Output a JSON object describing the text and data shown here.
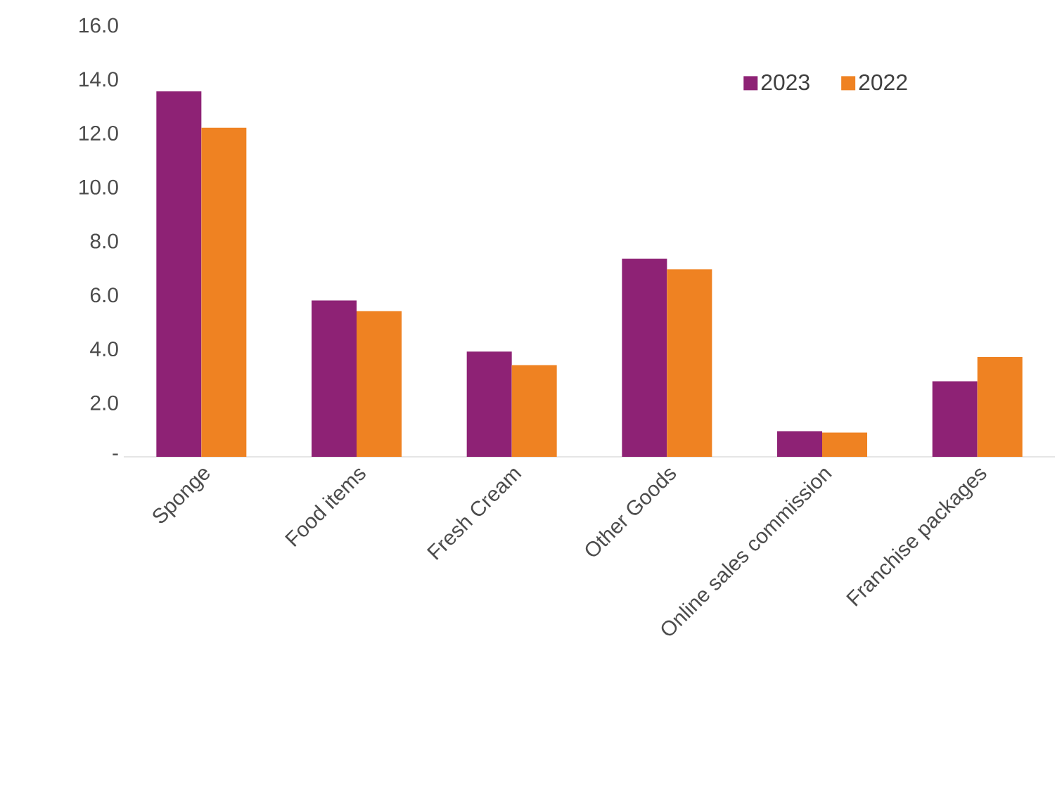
{
  "chart_data": {
    "type": "bar",
    "categories": [
      "Sponge",
      "Food items",
      "Fresh Cream",
      "Other Goods",
      "Online sales commission",
      "Franchise packages"
    ],
    "series": [
      {
        "name": "2023",
        "color": "#8e2275",
        "values": [
          13.55,
          5.8,
          3.9,
          7.35,
          0.95,
          2.8
        ]
      },
      {
        "name": "2022",
        "color": "#ef8222",
        "values": [
          12.2,
          5.4,
          3.4,
          6.95,
          0.9,
          3.7
        ]
      }
    ],
    "ylim": [
      0,
      16
    ],
    "yticks": [
      {
        "value": 0,
        "label": "-"
      },
      {
        "value": 2,
        "label": "2.0"
      },
      {
        "value": 4,
        "label": "4.0"
      },
      {
        "value": 6,
        "label": "6.0"
      },
      {
        "value": 8,
        "label": "8.0"
      },
      {
        "value": 10,
        "label": "10.0"
      },
      {
        "value": 12,
        "label": "12.0"
      },
      {
        "value": 14,
        "label": "14.0"
      },
      {
        "value": 16,
        "label": "16.0"
      }
    ],
    "legend": "top right"
  }
}
